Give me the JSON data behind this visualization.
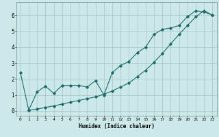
{
  "xlabel": "Humidex (Indice chaleur)",
  "ylabel": "",
  "bg_color": "#cce8e8",
  "grid_color": "#aacccc",
  "line_color": "#1a6b6b",
  "xlim": [
    -0.5,
    23.5
  ],
  "ylim": [
    -0.3,
    6.8
  ],
  "xticks": [
    0,
    1,
    2,
    3,
    4,
    5,
    6,
    7,
    8,
    9,
    10,
    11,
    12,
    13,
    14,
    15,
    16,
    17,
    18,
    19,
    20,
    21,
    22,
    23
  ],
  "yticks": [
    0,
    1,
    2,
    3,
    4,
    5,
    6
  ],
  "line1_x": [
    0,
    1,
    2,
    3,
    4,
    5,
    6,
    7,
    8,
    9,
    10,
    11,
    12,
    13,
    14,
    15,
    16,
    17,
    18,
    19,
    20,
    21,
    22,
    23
  ],
  "line1_y": [
    2.4,
    0.05,
    0.12,
    0.22,
    0.32,
    0.43,
    0.55,
    0.66,
    0.77,
    0.88,
    1.05,
    1.25,
    1.5,
    1.75,
    2.15,
    2.55,
    3.05,
    3.6,
    4.2,
    4.8,
    5.35,
    5.9,
    6.28,
    6.0
  ],
  "line2_x": [
    1,
    2,
    3,
    4,
    5,
    6,
    7,
    8,
    9,
    10,
    11,
    12,
    13,
    14,
    15,
    16,
    17,
    18,
    19,
    20,
    21,
    22,
    23
  ],
  "line2_y": [
    0.05,
    1.2,
    1.55,
    1.1,
    1.6,
    1.6,
    1.6,
    1.5,
    1.9,
    1.0,
    2.4,
    2.85,
    3.1,
    3.65,
    4.0,
    4.8,
    5.1,
    5.2,
    5.35,
    5.9,
    6.28,
    6.2,
    6.0
  ]
}
